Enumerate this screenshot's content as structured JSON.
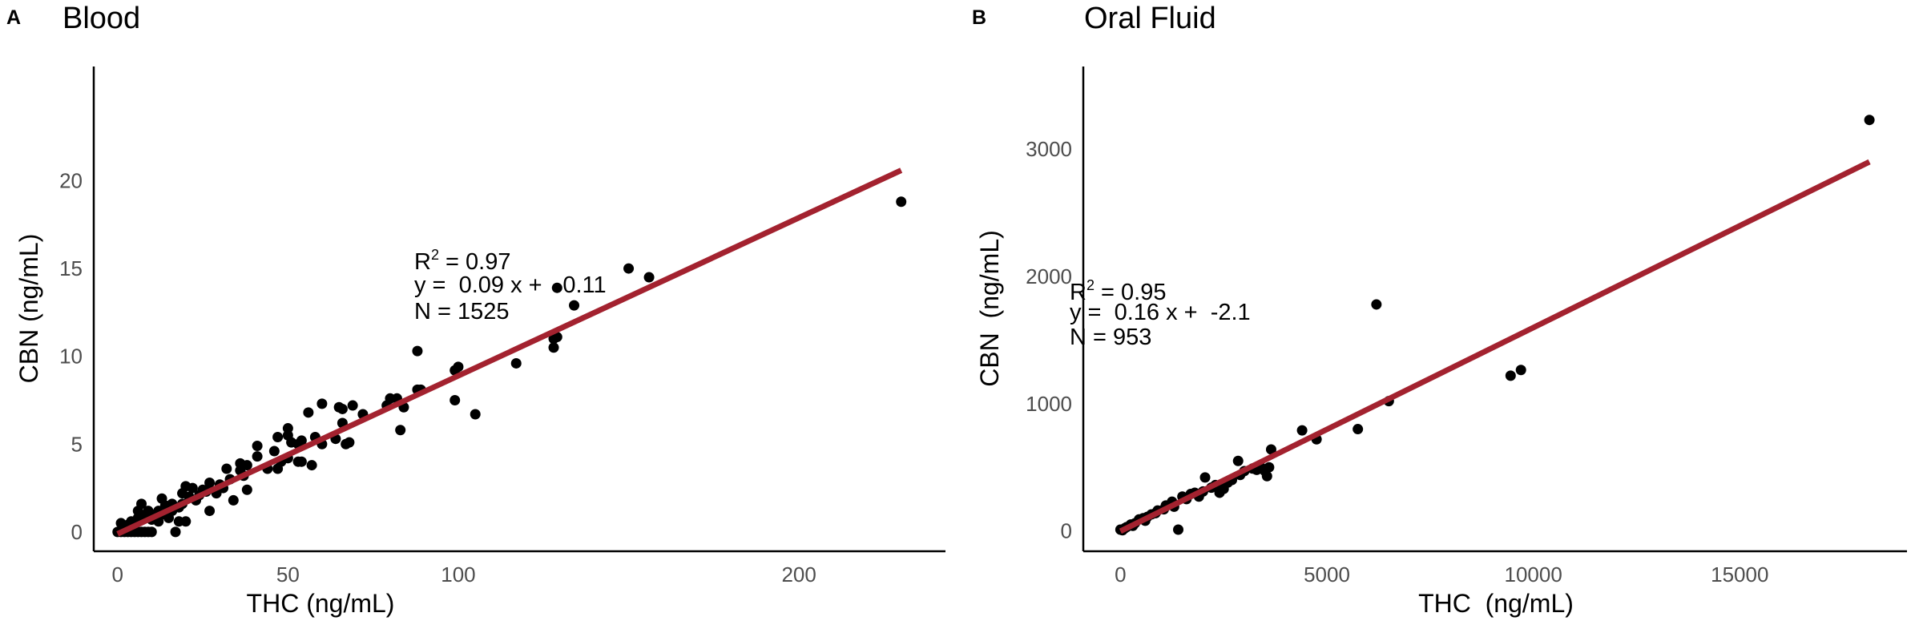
{
  "chart_data": [
    {
      "type": "scatter",
      "panel_label": "A",
      "title": "Blood",
      "xlabel": "THC (ng/mL)",
      "ylabel": "CBN  (ng/mL)",
      "xlim": [
        -7,
        243
      ],
      "ylim": [
        -1.1,
        26.5
      ],
      "xticks": [
        0,
        50,
        100,
        200
      ],
      "xtick_labels": [
        "0",
        "50",
        "100",
        "200"
      ],
      "yticks": [
        0,
        5,
        10,
        15,
        20
      ],
      "ytick_labels": [
        "0",
        "5",
        "10",
        "15",
        "20"
      ],
      "fit": {
        "slope": 0.09,
        "intercept": -0.11,
        "x_range": [
          0,
          230
        ],
        "color": "#a3222f"
      },
      "annotation": {
        "r2_label": "R",
        "r2_sup": "2",
        "r2_value": " = 0.97",
        "equation": "y =  0.09 x +  -0.11",
        "n": "N = 1525"
      },
      "points": [
        [
          230,
          18.8
        ],
        [
          150,
          15
        ],
        [
          156,
          14.5
        ],
        [
          129,
          13.9
        ],
        [
          134,
          12.9
        ],
        [
          128,
          11
        ],
        [
          129,
          11.1
        ],
        [
          128,
          10.5
        ],
        [
          117,
          9.6
        ],
        [
          100,
          9.4
        ],
        [
          99,
          9.2
        ],
        [
          88,
          10.3
        ],
        [
          88,
          8.1
        ],
        [
          89,
          8.1
        ],
        [
          99,
          7.5
        ],
        [
          105,
          6.7
        ],
        [
          82,
          7.6
        ],
        [
          83,
          5.8
        ],
        [
          84,
          7.1
        ],
        [
          80,
          7.6
        ],
        [
          79,
          7.2
        ],
        [
          60,
          7.3
        ],
        [
          56,
          6.8
        ],
        [
          65,
          7.1
        ],
        [
          66,
          7
        ],
        [
          69,
          7.2
        ],
        [
          72,
          6.7
        ],
        [
          66,
          6.2
        ],
        [
          67,
          5
        ],
        [
          68,
          5.1
        ],
        [
          64,
          5.3
        ],
        [
          58,
          5.4
        ],
        [
          60,
          5
        ],
        [
          50,
          5.9
        ],
        [
          47,
          5.4
        ],
        [
          50,
          5.5
        ],
        [
          51,
          5.1
        ],
        [
          54,
          5.2
        ],
        [
          53,
          5
        ],
        [
          41,
          4.9
        ],
        [
          41,
          4.3
        ],
        [
          36,
          3.9
        ],
        [
          38,
          3.8
        ],
        [
          46,
          4.6
        ],
        [
          47,
          3.6
        ],
        [
          48,
          4
        ],
        [
          50,
          4.2
        ],
        [
          53,
          4
        ],
        [
          54,
          4
        ],
        [
          57,
          3.8
        ],
        [
          44,
          3.6
        ],
        [
          32,
          3.6
        ],
        [
          33,
          3
        ],
        [
          36,
          3.5
        ],
        [
          37,
          3.2
        ],
        [
          34,
          1.8
        ],
        [
          38,
          2.4
        ],
        [
          27,
          1.2
        ],
        [
          20,
          0.6
        ],
        [
          18,
          0.6
        ],
        [
          17,
          0
        ],
        [
          30,
          2.7
        ],
        [
          27,
          2.8
        ],
        [
          26,
          2.3
        ],
        [
          22,
          2.5
        ],
        [
          20,
          2.6
        ],
        [
          19,
          2.2
        ],
        [
          21,
          2
        ],
        [
          23,
          1.8
        ],
        [
          24,
          2.1
        ],
        [
          13,
          1.9
        ],
        [
          14,
          1.5
        ],
        [
          16,
          1.6
        ],
        [
          12,
          1.2
        ],
        [
          11,
          1
        ],
        [
          7,
          1.6
        ],
        [
          6,
          1.2
        ],
        [
          9,
          1.2
        ],
        [
          8,
          0.9
        ],
        [
          5,
          0.5
        ],
        [
          4,
          0.6
        ],
        [
          3,
          0.4
        ],
        [
          1,
          0.5
        ],
        [
          2,
          0.2
        ],
        [
          0,
          0
        ],
        [
          1,
          0
        ],
        [
          2,
          0
        ],
        [
          3,
          0
        ],
        [
          4,
          0
        ],
        [
          5,
          0
        ],
        [
          6,
          0
        ],
        [
          7,
          0
        ],
        [
          8,
          0
        ],
        [
          9,
          0
        ],
        [
          10,
          0
        ],
        [
          6,
          0.8
        ],
        [
          10,
          0.7
        ],
        [
          12,
          0.6
        ],
        [
          14,
          1
        ],
        [
          15,
          0.8
        ],
        [
          16,
          1.2
        ],
        [
          18,
          1.4
        ],
        [
          19,
          1.6
        ],
        [
          25,
          2.4
        ],
        [
          29,
          2.2
        ],
        [
          31,
          2.5
        ]
      ]
    },
    {
      "type": "scatter",
      "panel_label": "B",
      "title": "Oral Fluid",
      "xlabel": "THC  (ng/mL)",
      "ylabel": "CBN  (ng/mL)",
      "xlim": [
        -900,
        19050
      ],
      "ylim": [
        -160,
        3650
      ],
      "xticks": [
        0,
        5000,
        10000,
        15000
      ],
      "xtick_labels": [
        "0",
        "5000",
        "10000",
        "15000"
      ],
      "yticks": [
        0,
        1000,
        2000,
        3000
      ],
      "ytick_labels": [
        "0",
        "1000",
        "2000",
        "3000"
      ],
      "fit": {
        "slope": 0.16,
        "intercept": -2.1,
        "x_range": [
          0,
          18140
        ],
        "color": "#a3222f"
      },
      "annotation": {
        "r2_label": "R",
        "r2_sup": "2",
        "r2_value": " = 0.95",
        "equation": "y =  0.16 x +  -2.1",
        "n": "N = 953"
      },
      "points": [
        [
          18140,
          3230
        ],
        [
          6200,
          1780
        ],
        [
          9450,
          1220
        ],
        [
          9700,
          1265
        ],
        [
          6500,
          1020
        ],
        [
          5750,
          800
        ],
        [
          4750,
          720
        ],
        [
          4400,
          790
        ],
        [
          3650,
          640
        ],
        [
          3600,
          500
        ],
        [
          3550,
          430
        ],
        [
          3500,
          470
        ],
        [
          3300,
          480
        ],
        [
          3000,
          470
        ],
        [
          2850,
          550
        ],
        [
          2700,
          400
        ],
        [
          2500,
          330
        ],
        [
          2400,
          300
        ],
        [
          2050,
          420
        ],
        [
          2000,
          310
        ],
        [
          1900,
          270
        ],
        [
          1400,
          10
        ],
        [
          1500,
          270
        ],
        [
          1250,
          230
        ],
        [
          1050,
          170
        ],
        [
          850,
          140
        ],
        [
          650,
          110
        ],
        [
          450,
          90
        ],
        [
          250,
          50
        ],
        [
          0,
          10
        ],
        [
          100,
          20
        ],
        [
          350,
          60
        ],
        [
          750,
          130
        ],
        [
          1700,
          290
        ],
        [
          2200,
          340
        ],
        [
          3200,
          490
        ],
        [
          2900,
          440
        ],
        [
          1600,
          250
        ],
        [
          1100,
          200
        ],
        [
          900,
          160
        ],
        [
          550,
          100
        ],
        [
          150,
          30
        ],
        [
          50,
          5
        ],
        [
          300,
          40
        ],
        [
          600,
          80
        ],
        [
          1300,
          190
        ],
        [
          1800,
          300
        ],
        [
          2300,
          360
        ],
        [
          2600,
          380
        ],
        [
          3400,
          500
        ]
      ]
    }
  ]
}
